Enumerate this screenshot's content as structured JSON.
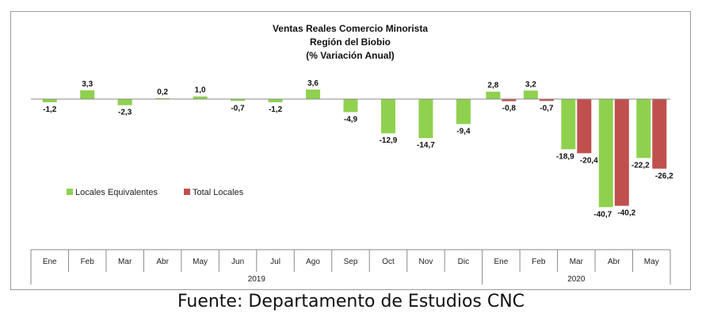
{
  "chart_data": {
    "type": "bar",
    "title": [
      "Ventas Reales Comercio Minorista",
      "Región del Biobio",
      "(% Variación Anual)"
    ],
    "categories": [
      "Ene",
      "Feb",
      "Mar",
      "Abr",
      "May",
      "Jun",
      "Jul",
      "Ago",
      "Sep",
      "Oct",
      "Nov",
      "Dic",
      "Ene",
      "Feb",
      "Mar",
      "Abr",
      "May"
    ],
    "year_groups": [
      {
        "label": "2019",
        "count": 12
      },
      {
        "label": "2020",
        "count": 5
      }
    ],
    "series": [
      {
        "name": "Locales Equivalentes",
        "color": "#8fd14f",
        "values": [
          -1.2,
          3.3,
          -2.3,
          0.2,
          1.0,
          -0.7,
          -1.2,
          3.6,
          -4.9,
          -12.9,
          -14.7,
          -9.4,
          2.8,
          3.2,
          -18.9,
          -40.7,
          -22.2
        ],
        "labels": [
          "-1,2",
          "3,3",
          "-2,3",
          "0,2",
          "1,0",
          "-0,7",
          "-1,2",
          "3,6",
          "-4,9",
          "-12,9",
          "-14,7",
          "-9,4",
          "2,8",
          "3,2",
          "-18,9",
          "-40,7",
          "-22,2"
        ]
      },
      {
        "name": "Total Locales",
        "color": "#c0504d",
        "values": [
          null,
          null,
          null,
          null,
          null,
          null,
          null,
          null,
          null,
          null,
          null,
          null,
          -0.8,
          -0.7,
          -20.4,
          -40.2,
          -26.2
        ],
        "labels": [
          null,
          null,
          null,
          null,
          null,
          null,
          null,
          null,
          null,
          null,
          null,
          null,
          "-0,8",
          "-0,7",
          "-20,4",
          "-40,2",
          "-26,2"
        ]
      }
    ],
    "legend_position": "left-middle",
    "grid": false
  },
  "source": "Fuente: Departamento de Estudios CNC"
}
